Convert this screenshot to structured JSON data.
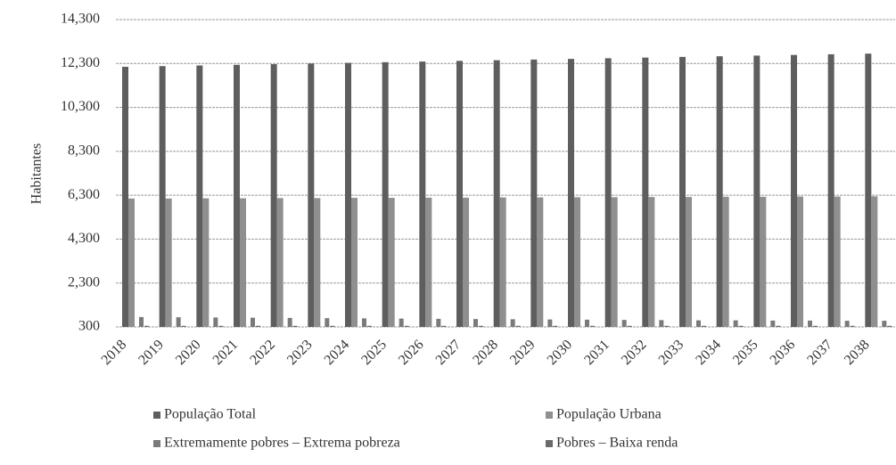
{
  "chart_data": {
    "type": "bar",
    "y_label": "Habitantes",
    "categories": [
      "2018",
      "2019",
      "2020",
      "2021",
      "2022",
      "2023",
      "2024",
      "2025",
      "2026",
      "2027",
      "2028",
      "2029",
      "2030",
      "2031",
      "2032",
      "2033",
      "2034",
      "2035",
      "2036",
      "2037",
      "2038"
    ],
    "series": [
      {
        "name": "População Total",
        "color": "#5e5e5e",
        "values": [
          12150,
          12180,
          12210,
          12240,
          12270,
          12300,
          12330,
          12360,
          12390,
          12420,
          12450,
          12480,
          12510,
          12540,
          12570,
          12600,
          12630,
          12660,
          12690,
          12720,
          12750
        ]
      },
      {
        "name": "População Urbana",
        "color": "#8f8f8f",
        "values": [
          6150,
          6150,
          6160,
          6160,
          6170,
          6170,
          6180,
          6180,
          6190,
          6190,
          6200,
          6200,
          6210,
          6210,
          6220,
          6220,
          6230,
          6230,
          6240,
          6240,
          6250
        ]
      },
      {
        "name": "Extremamente pobres – Extrema pobreza",
        "color": "#7a7a7a",
        "values": [
          750,
          740,
          730,
          720,
          710,
          700,
          690,
          680,
          670,
          660,
          650,
          640,
          630,
          620,
          610,
          600,
          600,
          590,
          590,
          580,
          580
        ]
      },
      {
        "name": "Pobres – Baixa renda",
        "color": "#6a6a6a",
        "values": [
          350,
          350,
          350,
          350,
          350,
          350,
          350,
          350,
          350,
          350,
          350,
          350,
          350,
          350,
          350,
          350,
          350,
          350,
          350,
          350,
          350
        ]
      }
    ],
    "ylim": [
      300,
      14300
    ],
    "yticks": [
      {
        "value": 300,
        "label": "300"
      },
      {
        "value": 2300,
        "label": "2,300"
      },
      {
        "value": 4300,
        "label": "4,300"
      },
      {
        "value": 6300,
        "label": "6,300"
      },
      {
        "value": 8300,
        "label": "8,300"
      },
      {
        "value": 10300,
        "label": "10,300"
      },
      {
        "value": 12300,
        "label": "12,300"
      },
      {
        "value": 14300,
        "label": "14,300"
      }
    ],
    "grid": true
  }
}
